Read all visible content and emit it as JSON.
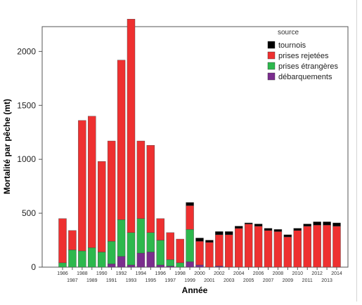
{
  "chart_data": {
    "type": "bar",
    "stacked": true,
    "xlabel": "Année",
    "ylabel": "Mortalité par pêche (mt)",
    "ylim": [
      0,
      2230
    ],
    "yticks": [
      0,
      500,
      1000,
      1500,
      2000
    ],
    "ytick_labels": [
      "0",
      "500",
      "1000",
      "1500",
      "2000"
    ],
    "categories": [
      "1986",
      "1987",
      "1988",
      "1989",
      "1990",
      "1991",
      "1992",
      "1993",
      "1994",
      "1995",
      "1996",
      "1997",
      "1998",
      "1999",
      "2000",
      "2001",
      "2002",
      "2003",
      "2004",
      "2005",
      "2006",
      "2007",
      "2008",
      "2009",
      "2010",
      "2011",
      "2012",
      "2013",
      "2014"
    ],
    "tick_labels_upper": [
      "1986",
      "1988",
      "1990",
      "1992",
      "1994",
      "1996",
      "1998",
      "2000",
      "2002",
      "2004",
      "2006",
      "2008",
      "2010",
      "2012",
      "2014"
    ],
    "tick_labels_lower": [
      "1987",
      "1989",
      "1991",
      "1993",
      "1995",
      "1997",
      "1999",
      "2001",
      "2003",
      "2005",
      "2007",
      "2009",
      "2011",
      "2013"
    ],
    "legend_title": "source",
    "legend_position": "top-right",
    "series": [
      {
        "name": "débarquements",
        "color": "#7b2d8e",
        "values": [
          0,
          0,
          0,
          0,
          0,
          30,
          100,
          20,
          130,
          140,
          20,
          10,
          0,
          50,
          20,
          0,
          10,
          0,
          0,
          0,
          0,
          0,
          0,
          0,
          0,
          0,
          0,
          0,
          0
        ]
      },
      {
        "name": "prises étrangères",
        "color": "#2db84d",
        "values": [
          40,
          160,
          150,
          180,
          140,
          210,
          340,
          300,
          320,
          180,
          230,
          60,
          40,
          300,
          0,
          0,
          0,
          0,
          0,
          0,
          0,
          0,
          0,
          0,
          0,
          0,
          0,
          0,
          0
        ]
      },
      {
        "name": "prises rejetées",
        "color": "#ee3030",
        "values": [
          410,
          180,
          1210,
          1220,
          840,
          930,
          1480,
          1980,
          720,
          810,
          200,
          250,
          220,
          220,
          220,
          230,
          290,
          300,
          360,
          400,
          380,
          340,
          330,
          280,
          340,
          380,
          390,
          390,
          380
        ]
      },
      {
        "name": "tournois",
        "color": "#000000",
        "values": [
          0,
          0,
          0,
          0,
          0,
          0,
          0,
          0,
          0,
          0,
          0,
          0,
          0,
          30,
          30,
          20,
          30,
          30,
          20,
          10,
          20,
          20,
          20,
          20,
          20,
          20,
          30,
          30,
          30
        ]
      }
    ]
  }
}
